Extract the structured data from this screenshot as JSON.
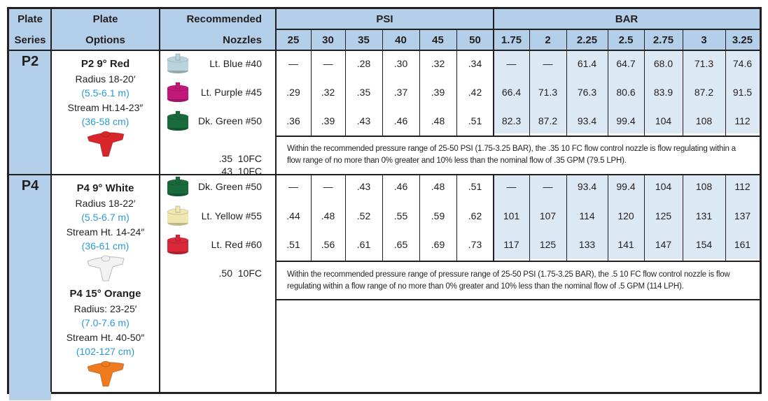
{
  "header": {
    "plate_series": [
      "Plate",
      "Series"
    ],
    "plate_options": [
      "Plate",
      "Options"
    ],
    "recommended_nozzles": [
      "Recommended",
      "Nozzles"
    ],
    "psi_label": "PSI",
    "bar_label": "BAR",
    "psi_values": [
      "25",
      "30",
      "35",
      "40",
      "45",
      "50"
    ],
    "bar_values": [
      "1.75",
      "2",
      "2.25",
      "2.5",
      "2.75",
      "3",
      "3.25"
    ]
  },
  "series": [
    {
      "name": "P2",
      "options": [
        {
          "title": "P2 9° Red",
          "radius": "Radius 18-20′",
          "radius_m": "(5.5-6.1 m)",
          "stream": "Stream Ht.14-23″",
          "stream_cm": "(36-58 cm)",
          "plate_color": "#d9262a"
        }
      ],
      "nozzles": [
        {
          "label": "Lt. Blue #40",
          "color": "#b9d4dc",
          "psi": [
            "—",
            "—",
            ".28",
            ".30",
            ".32",
            ".34"
          ],
          "bar": [
            "—",
            "—",
            "61.4",
            "64.7",
            "68.0",
            "71.3",
            "74.6"
          ]
        },
        {
          "label": "Lt. Purple #45",
          "color": "#c2187a",
          "psi": [
            ".29",
            ".32",
            ".35",
            ".37",
            ".39",
            ".42"
          ],
          "bar": [
            "66.4",
            "71.3",
            "76.3",
            "80.6",
            "83.9",
            "87.2",
            "91.5"
          ]
        },
        {
          "label": "Dk. Green #50",
          "color": "#1a6b3c",
          "psi": [
            ".36",
            ".39",
            ".43",
            ".46",
            ".48",
            ".51"
          ],
          "bar": [
            "82.3",
            "87.2",
            "93.4",
            "99.4",
            "104",
            "108",
            "112"
          ]
        }
      ],
      "fc_nozzles": [
        ".35  10FC",
        ".43  10FC"
      ],
      "note": "Within the recommended pressure range of 25-50 PSI (1.75-3.25 BAR), the .35 10 FC flow control nozzle is flow regulating within a flow range of no more than 0% greater and 10% less than the nominal flow of .35 GPM (79.5 LPH)."
    },
    {
      "name": "P4",
      "options": [
        {
          "title": "P4 9°  White",
          "radius": "Radius 18-22′",
          "radius_m": "(5.5-6.7 m)",
          "stream": "Stream Ht. 14-24″",
          "stream_cm": "(36-61 cm)",
          "plate_color": "#f2f2f2"
        },
        {
          "title": "P4 15°  Orange",
          "radius": "Radius: 23-25′",
          "radius_m": "(7.0-7.6 m)",
          "stream": "Stream Ht. 40-50″",
          "stream_cm": "(102-127 cm)",
          "plate_color": "#f07a1e"
        }
      ],
      "nozzles": [
        {
          "label": "Dk. Green #50",
          "color": "#1a6b3c",
          "psi": [
            "—",
            "—",
            ".43",
            ".46",
            ".48",
            ".51"
          ],
          "bar": [
            "—",
            "—",
            "93.4",
            "99.4",
            "104",
            "108",
            "112"
          ]
        },
        {
          "label": "Lt. Yellow #55",
          "color": "#efe6b0",
          "psi": [
            ".44",
            ".48",
            ".52",
            ".55",
            ".59",
            ".62"
          ],
          "bar": [
            "101",
            "107",
            "114",
            "120",
            "125",
            "131",
            "137"
          ]
        },
        {
          "label": "Lt. Red #60",
          "color": "#d8283a",
          "psi": [
            ".51",
            ".56",
            ".61",
            ".65",
            ".69",
            ".73"
          ],
          "bar": [
            "117",
            "125",
            "133",
            "141",
            "147",
            "154",
            "161"
          ]
        }
      ],
      "fc_nozzles": [
        ".50  10FC"
      ],
      "note": "Within the recommended pressure range of  pressure range of 25-50 PSI (1.75-3.25 BAR), the .5 10 FC flow control nozzle is flow regulating within a flow range of no more than 0% greater and 10% less than the nominal flow of .5 GPM (114 LPH)."
    }
  ],
  "colors": {
    "header_bg": "#b4cfe9",
    "bar_bg": "#dce9f5",
    "metric_text": "#2a9ad6"
  }
}
